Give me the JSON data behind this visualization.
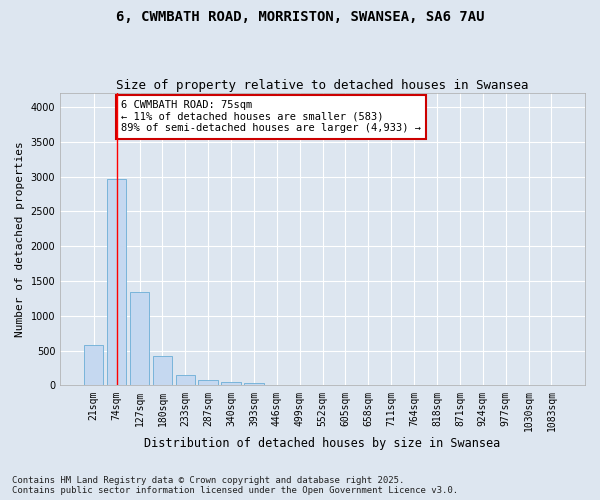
{
  "title_line1": "6, CWMBATH ROAD, MORRISTON, SWANSEA, SA6 7AU",
  "title_line2": "Size of property relative to detached houses in Swansea",
  "xlabel": "Distribution of detached houses by size in Swansea",
  "ylabel": "Number of detached properties",
  "categories": [
    "21sqm",
    "74sqm",
    "127sqm",
    "180sqm",
    "233sqm",
    "287sqm",
    "340sqm",
    "393sqm",
    "446sqm",
    "499sqm",
    "552sqm",
    "605sqm",
    "658sqm",
    "711sqm",
    "764sqm",
    "818sqm",
    "871sqm",
    "924sqm",
    "977sqm",
    "1030sqm",
    "1083sqm"
  ],
  "bar_values": [
    580,
    2970,
    1340,
    430,
    155,
    85,
    50,
    40,
    0,
    0,
    0,
    0,
    0,
    0,
    0,
    0,
    0,
    0,
    0,
    0,
    0
  ],
  "bar_color": "#c5d8f0",
  "bar_edge_color": "#6baed6",
  "red_line_x": 1,
  "annotation_text": "6 CWMBATH ROAD: 75sqm\n← 11% of detached houses are smaller (583)\n89% of semi-detached houses are larger (4,933) →",
  "annotation_box_color": "#ffffff",
  "annotation_box_edge": "#cc0000",
  "ylim": [
    0,
    4200
  ],
  "yticks": [
    0,
    500,
    1000,
    1500,
    2000,
    2500,
    3000,
    3500,
    4000
  ],
  "background_color": "#dde6f0",
  "grid_color": "#ffffff",
  "footnote": "Contains HM Land Registry data © Crown copyright and database right 2025.\nContains public sector information licensed under the Open Government Licence v3.0.",
  "title_fontsize": 10,
  "subtitle_fontsize": 9,
  "axis_label_fontsize": 8,
  "tick_fontsize": 7,
  "annotation_fontsize": 7.5,
  "footnote_fontsize": 6.5
}
